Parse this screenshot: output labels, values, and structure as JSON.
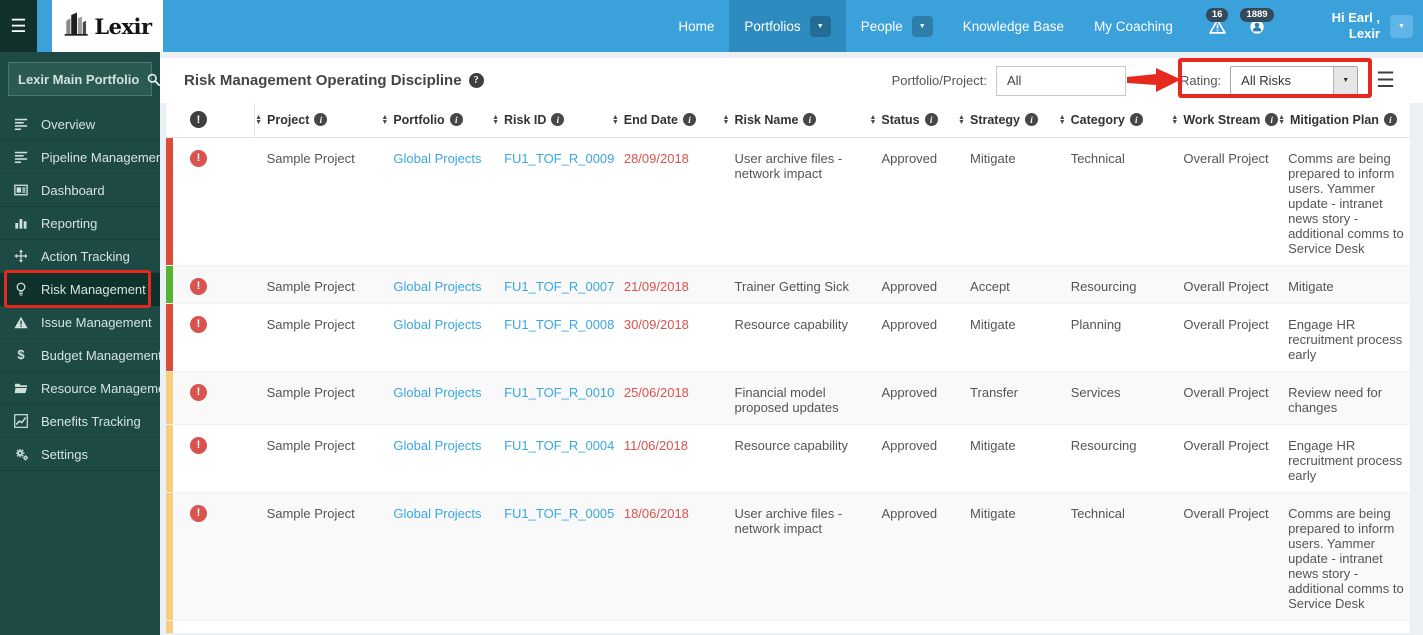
{
  "navbar": {
    "brand": "Lexir",
    "items": [
      {
        "label": "Home",
        "dropdown": false,
        "active": false
      },
      {
        "label": "Portfolios",
        "dropdown": true,
        "active": true
      },
      {
        "label": "People",
        "dropdown": true,
        "active": false
      },
      {
        "label": "Knowledge Base",
        "dropdown": false,
        "active": false
      },
      {
        "label": "My Coaching",
        "dropdown": false,
        "active": false
      }
    ],
    "badges": [
      {
        "icon": "warning-triangle-icon",
        "count": "16"
      },
      {
        "icon": "user-circle-icon",
        "count": "1889"
      }
    ],
    "user_greeting": "Hi Earl ,",
    "user_name": "Lexir"
  },
  "sidebar": {
    "search_value": "Lexir Main Portfolio",
    "items": [
      {
        "label": "Overview",
        "icon": "list-icon",
        "active": false
      },
      {
        "label": "Pipeline Management",
        "icon": "list-icon",
        "active": false
      },
      {
        "label": "Dashboard",
        "icon": "dashboard-icon",
        "active": false
      },
      {
        "label": "Reporting",
        "icon": "bar-chart-icon",
        "active": false
      },
      {
        "label": "Action Tracking",
        "icon": "arrows-icon",
        "active": false
      },
      {
        "label": "Risk Management",
        "icon": "lightbulb-icon",
        "active": true
      },
      {
        "label": "Issue Management",
        "icon": "warning-icon",
        "active": false
      },
      {
        "label": "Budget Management",
        "icon": "dollar-icon",
        "active": false
      },
      {
        "label": "Resource Management",
        "icon": "folder-icon",
        "active": false
      },
      {
        "label": "Benefits Tracking",
        "icon": "line-chart-icon",
        "active": false
      },
      {
        "label": "Settings",
        "icon": "gears-icon",
        "active": false
      }
    ]
  },
  "main": {
    "title": "Risk Management Operating Discipline",
    "filters": {
      "portfolio_label": "Portfolio/Project:",
      "portfolio_value": "All",
      "rating_label": "Rating:",
      "rating_value": "All Risks"
    },
    "table": {
      "columns": [
        {
          "key": "alert",
          "label": ""
        },
        {
          "key": "project",
          "label": "Project"
        },
        {
          "key": "portfolio",
          "label": "Portfolio"
        },
        {
          "key": "risk_id",
          "label": "Risk ID"
        },
        {
          "key": "end_date",
          "label": "End Date"
        },
        {
          "key": "risk_name",
          "label": "Risk Name"
        },
        {
          "key": "status",
          "label": "Status"
        },
        {
          "key": "strategy",
          "label": "Strategy"
        },
        {
          "key": "category",
          "label": "Category"
        },
        {
          "key": "work_stream",
          "label": "Work Stream"
        },
        {
          "key": "mitigation_plan",
          "label": "Mitigation Plan"
        }
      ],
      "rows": [
        {
          "severity": "red",
          "project": "Sample Project",
          "portfolio": "Global Projects",
          "risk_id": "FU1_TOF_R_0009",
          "end_date": "28/09/2018",
          "risk_name": "User archive files - network impact",
          "status": "Approved",
          "strategy": "Mitigate",
          "category": "Technical",
          "work_stream": "Overall Project",
          "mitigation_plan": "Comms are being prepared to inform users. Yammer update - intranet news story - additional comms to Service Desk"
        },
        {
          "severity": "green",
          "project": "Sample Project",
          "portfolio": "Global Projects",
          "risk_id": "FU1_TOF_R_0007",
          "end_date": "21/09/2018",
          "risk_name": "Trainer Getting Sick",
          "status": "Approved",
          "strategy": "Accept",
          "category": "Resourcing",
          "work_stream": "Overall Project",
          "mitigation_plan": "Mitigate"
        },
        {
          "severity": "red",
          "project": "Sample Project",
          "portfolio": "Global Projects",
          "risk_id": "FU1_TOF_R_0008",
          "end_date": "30/09/2018",
          "risk_name": "Resource capability",
          "status": "Approved",
          "strategy": "Mitigate",
          "category": "Planning",
          "work_stream": "Overall Project",
          "mitigation_plan": "Engage HR recruitment process early"
        },
        {
          "severity": "yellow",
          "project": "Sample Project",
          "portfolio": "Global Projects",
          "risk_id": "FU1_TOF_R_0010",
          "end_date": "25/06/2018",
          "risk_name": "Financial model proposed updates",
          "status": "Approved",
          "strategy": "Transfer",
          "category": "Services",
          "work_stream": "Overall Project",
          "mitigation_plan": "Review need for changes"
        },
        {
          "severity": "yellow",
          "project": "Sample Project",
          "portfolio": "Global Projects",
          "risk_id": "FU1_TOF_R_0004",
          "end_date": "11/06/2018",
          "risk_name": "Resource capability",
          "status": "Approved",
          "strategy": "Mitigate",
          "category": "Resourcing",
          "work_stream": "Overall Project",
          "mitigation_plan": "Engage HR recruitment process early"
        },
        {
          "severity": "yellow",
          "project": "Sample Project",
          "portfolio": "Global Projects",
          "risk_id": "FU1_TOF_R_0005",
          "end_date": "18/06/2018",
          "risk_name": "User archive files - network impact",
          "status": "Approved",
          "strategy": "Mitigate",
          "category": "Technical",
          "work_stream": "Overall Project",
          "mitigation_plan": "Comms are being prepared to inform users. Yammer update - intranet news story - additional comms to Service Desk"
        }
      ],
      "partial_row_severity": "yellow"
    }
  },
  "icons": {
    "hamburger": "☰",
    "caret_down": "▼",
    "sort_up": "▲",
    "sort_down": "▼",
    "info": "i",
    "help": "?",
    "alert": "!",
    "dollar": "$",
    "export_menu": "☰"
  },
  "colors": {
    "navbar_blue": "#3ba1db",
    "navbar_active_blue": "#2e8bc0",
    "sidebar_teal": "#1d4a44",
    "sidebar_active_teal": "#10322c",
    "badge_slate": "#35495c",
    "link_blue": "#3aa7e0",
    "danger_red": "#d9534f",
    "annotation_red": "#e5291e",
    "severity": {
      "red": "#dd4b39",
      "green": "#54b332",
      "yellow": "#f8cd7c"
    }
  }
}
